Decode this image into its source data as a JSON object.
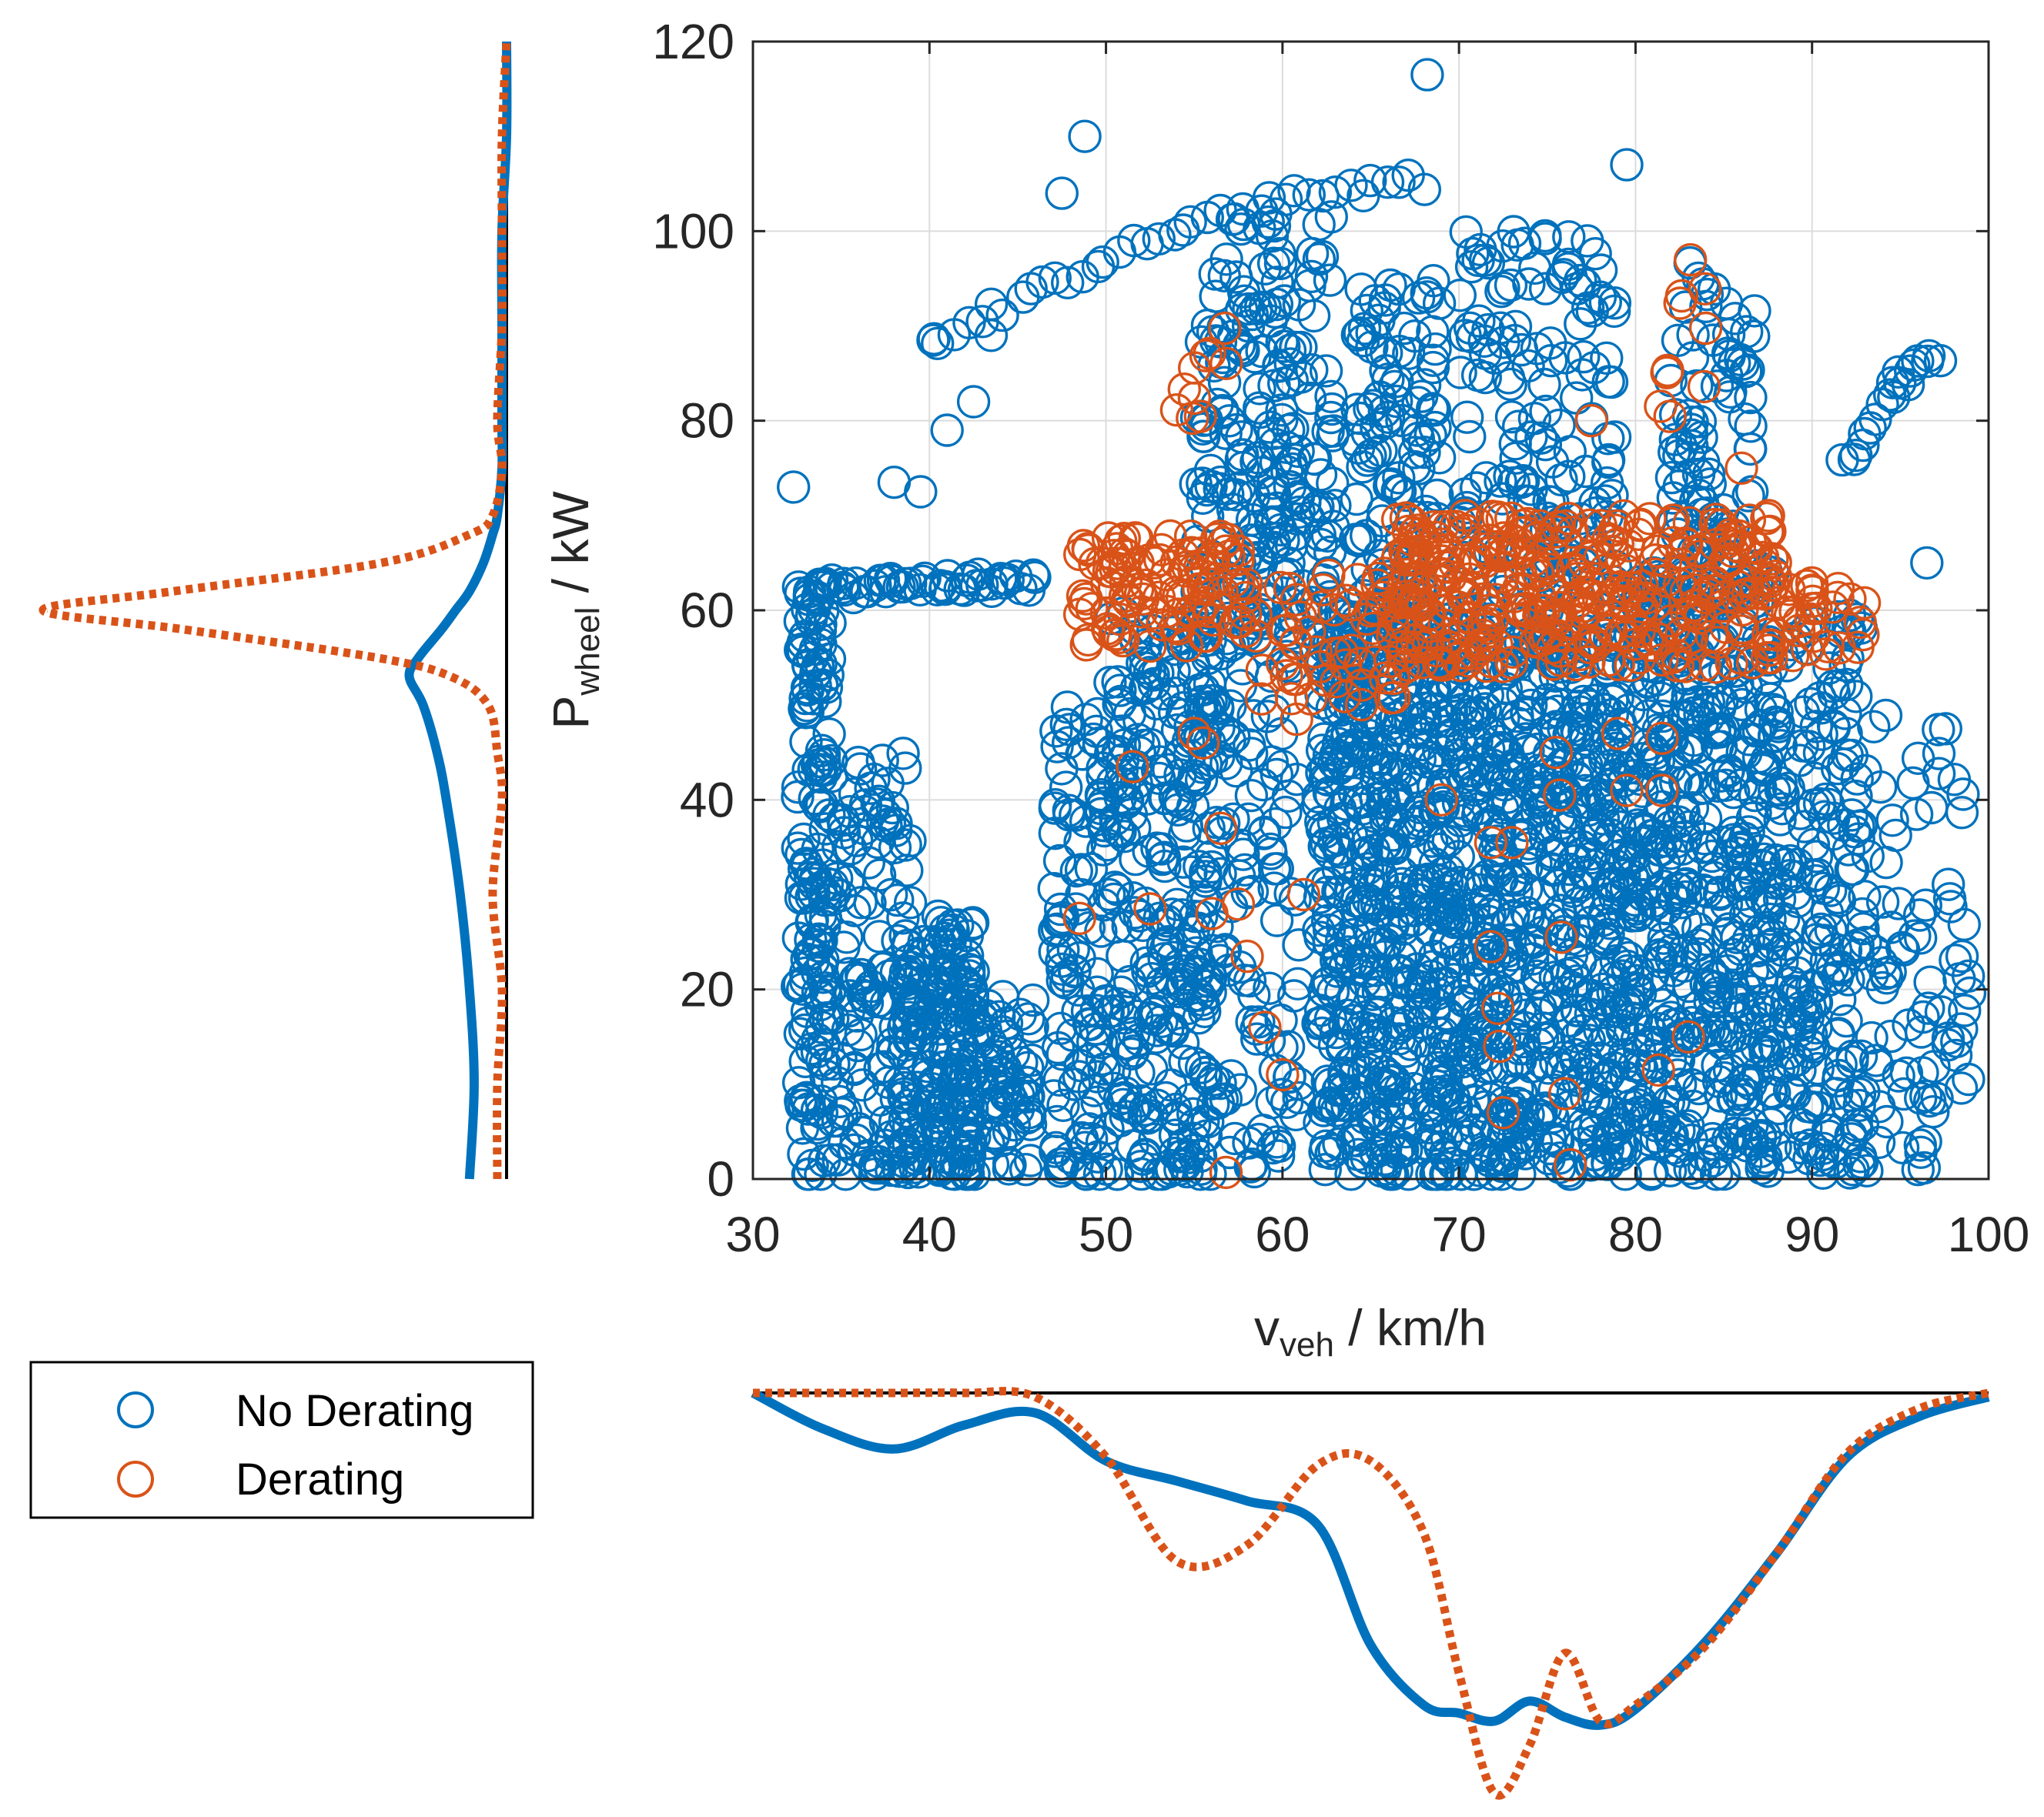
{
  "colors": {
    "no_derating": "#0072BD",
    "derating": "#D95319",
    "axis": "#262626",
    "grid": "#dcdcdc"
  },
  "chart_data": {
    "type": "scatter",
    "xlabel": {
      "main": "v",
      "sub": "veh",
      "unit": " / km/h"
    },
    "ylabel": {
      "main": "P",
      "sub": "wheel",
      "unit": " / kW"
    },
    "xlim": [
      30,
      100
    ],
    "ylim": [
      0,
      120
    ],
    "xticks": [
      30,
      40,
      50,
      60,
      70,
      80,
      90,
      100
    ],
    "yticks": [
      0,
      20,
      40,
      60,
      80,
      100,
      120
    ],
    "grid": true,
    "legend": {
      "position": "bottom-left",
      "entries": [
        {
          "label": "No Derating",
          "series": "no_derating"
        },
        {
          "label": "Derating",
          "series": "derating"
        }
      ]
    },
    "series": [
      {
        "name": "No Derating",
        "key": "no_derating",
        "marker": "open-circle",
        "clusters": [
          {
            "x": [
              32.5,
              34.5
            ],
            "y": [
              0,
              63
            ],
            "n": 160
          },
          {
            "x": [
              34.5,
              39
            ],
            "y": [
              0,
              45
            ],
            "n": 130
          },
          {
            "x": [
              38.5,
              42.5
            ],
            "y": [
              0,
              28
            ],
            "n": 170
          },
          {
            "x": [
              41.5,
              46
            ],
            "y": [
              0,
              20
            ],
            "n": 90
          },
          {
            "x": [
              47,
              50
            ],
            "y": [
              0,
              50
            ],
            "n": 110
          },
          {
            "x": [
              50,
              56
            ],
            "y": [
              0,
              60
            ],
            "n": 260
          },
          {
            "x": [
              55,
              61
            ],
            "y": [
              0,
              92
            ],
            "n": 240
          },
          {
            "x": [
              56,
              63
            ],
            "y": [
              55,
              102
            ],
            "n": 120
          },
          {
            "x": [
              62,
              69
            ],
            "y": [
              0,
              60
            ],
            "n": 500
          },
          {
            "x": [
              64,
              69
            ],
            "y": [
              55,
              95
            ],
            "n": 120
          },
          {
            "x": [
              69,
              80
            ],
            "y": [
              0,
              60
            ],
            "n": 700
          },
          {
            "x": [
              70,
              79
            ],
            "y": [
              60,
              100
            ],
            "n": 160
          },
          {
            "x": [
              80,
              88
            ],
            "y": [
              0,
              65
            ],
            "n": 500
          },
          {
            "x": [
              82,
              87
            ],
            "y": [
              65,
              97
            ],
            "n": 80
          },
          {
            "x": [
              88,
              93
            ],
            "y": [
              0,
              60
            ],
            "n": 200
          },
          {
            "x": [
              93,
              99
            ],
            "y": [
              0,
              50
            ],
            "n": 80
          }
        ],
        "arcs": [
          {
            "x": [
              33,
              46
            ],
            "y": [
              62,
              63
            ],
            "n": 50
          },
          {
            "x": [
              40,
              68
            ],
            "y": [
              88,
              105
            ],
            "n": 40
          },
          {
            "x": [
              92,
              97
            ],
            "y": [
              75,
              86
            ],
            "n": 20
          }
        ],
        "points": [
          [
            32.3,
            73
          ],
          [
            38,
            73.5
          ],
          [
            39.5,
            72.5
          ],
          [
            40.2,
            88.5
          ],
          [
            41,
            79
          ],
          [
            42.5,
            82
          ],
          [
            43.5,
            89
          ],
          [
            47.5,
            104
          ],
          [
            48.8,
            110
          ],
          [
            68.2,
            116.5
          ],
          [
            79.5,
            107
          ],
          [
            96.5,
            65
          ],
          [
            98.5,
            23.5
          ],
          [
            98.2,
            14.5
          ],
          [
            96,
            1
          ]
        ]
      },
      {
        "name": "Derating",
        "key": "derating",
        "marker": "open-circle",
        "clusters": [
          {
            "x": [
              48.5,
              58
            ],
            "y": [
              56,
              68
            ],
            "n": 110
          },
          {
            "x": [
              58,
              67
            ],
            "y": [
              50,
              64
            ],
            "n": 60
          },
          {
            "x": [
              66.5,
              88
            ],
            "y": [
              54,
              70
            ],
            "n": 360
          },
          {
            "x": [
              88,
              93
            ],
            "y": [
              55,
              63
            ],
            "n": 30
          },
          {
            "x": [
              54,
              57
            ],
            "y": [
              80,
              90
            ],
            "n": 10
          },
          {
            "x": [
              81,
              84
            ],
            "y": [
              78,
              98
            ],
            "n": 10
          }
        ],
        "points": [
          [
            48.5,
            27.5
          ],
          [
            51.5,
            43.5
          ],
          [
            52.5,
            28.5
          ],
          [
            55,
            47
          ],
          [
            55.5,
            46
          ],
          [
            56,
            28
          ],
          [
            56.5,
            37
          ],
          [
            56.8,
            0.7
          ],
          [
            57.5,
            29
          ],
          [
            58,
            23.5
          ],
          [
            59,
            16
          ],
          [
            60,
            11
          ],
          [
            60.8,
            48.5
          ],
          [
            61.2,
            30
          ],
          [
            69,
            40
          ],
          [
            71.8,
            35.5
          ],
          [
            73,
            35.5
          ],
          [
            71.8,
            24.5
          ],
          [
            72.2,
            18
          ],
          [
            72.3,
            14
          ],
          [
            72.5,
            7
          ],
          [
            75.7,
            40.5
          ],
          [
            75.8,
            25.5
          ],
          [
            76,
            9
          ],
          [
            76.3,
            1.5
          ],
          [
            75.5,
            45
          ],
          [
            79.5,
            41
          ],
          [
            81.5,
            41
          ],
          [
            81.5,
            46.5
          ],
          [
            81.3,
            11.5
          ],
          [
            83,
            15
          ],
          [
            79,
            47
          ],
          [
            77.5,
            80
          ],
          [
            86,
            75
          ]
        ]
      }
    ],
    "marginal_x": {
      "type": "line",
      "description": "density of v_veh (drawn downward)",
      "x": [
        30,
        34,
        38,
        42,
        46,
        50,
        54,
        58,
        62,
        65,
        68,
        70,
        72,
        74,
        76,
        78,
        80,
        84,
        88,
        92,
        96,
        100
      ],
      "no_derating": [
        0.0,
        0.09,
        0.14,
        0.08,
        0.05,
        0.17,
        0.22,
        0.27,
        0.33,
        0.63,
        0.78,
        0.8,
        0.82,
        0.77,
        0.81,
        0.83,
        0.79,
        0.62,
        0.4,
        0.16,
        0.06,
        0.01
      ],
      "derating": [
        0.0,
        0.0,
        0.0,
        0.0,
        0.01,
        0.16,
        0.42,
        0.38,
        0.18,
        0.17,
        0.35,
        0.7,
        1.0,
        0.88,
        0.65,
        0.82,
        0.78,
        0.63,
        0.4,
        0.15,
        0.04,
        0.0
      ]
    },
    "marginal_y": {
      "type": "line",
      "description": "density of P_wheel (drawn leftward)",
      "y": [
        0,
        10,
        20,
        30,
        40,
        45,
        50,
        53,
        55,
        58,
        60,
        62,
        65,
        68,
        70,
        75,
        80,
        90,
        100,
        110,
        120
      ],
      "no_derating": [
        0.08,
        0.07,
        0.08,
        0.1,
        0.13,
        0.15,
        0.18,
        0.21,
        0.19,
        0.14,
        0.11,
        0.08,
        0.05,
        0.03,
        0.02,
        0.01,
        0.01,
        0.01,
        0.01,
        0.0,
        0.0
      ],
      "derating": [
        0.02,
        0.02,
        0.01,
        0.03,
        0.01,
        0.02,
        0.04,
        0.12,
        0.28,
        0.7,
        1.0,
        0.72,
        0.27,
        0.08,
        0.03,
        0.01,
        0.02,
        0.01,
        0.01,
        0.01,
        0.0
      ]
    }
  }
}
